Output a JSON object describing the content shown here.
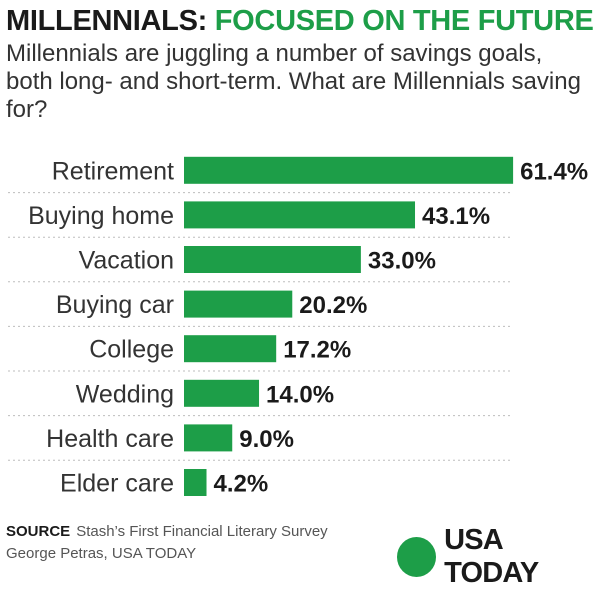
{
  "header": {
    "title_part1": "MILLENNIALS: ",
    "title_part2": "FOCUSED ON THE FUTURE",
    "subtitle": "Millennials are juggling a number of savings goals, both long- and short-term. What are Millennials saving for?"
  },
  "colors": {
    "accent": "#1d9e48",
    "text": "#222222",
    "divider": "#bdbdbd"
  },
  "chart_data": {
    "type": "bar",
    "orientation": "horizontal",
    "categories": [
      "Retirement",
      "Buying home",
      "Vacation",
      "Buying car",
      "College",
      "Wedding",
      "Health care",
      "Elder care"
    ],
    "values": [
      61.4,
      43.1,
      33.0,
      20.2,
      17.2,
      14.0,
      9.0,
      4.2
    ],
    "value_labels": [
      "61.4%",
      "43.1%",
      "33.0%",
      "20.2%",
      "17.2%",
      "14.0%",
      "9.0%",
      "4.2%"
    ],
    "unit": "%",
    "bar_color": "#1d9e48",
    "grid": false,
    "row_dividers": "dotted"
  },
  "footer": {
    "source_label": "SOURCE",
    "source_text": "Stash’s First Financial Literary Survey",
    "credit": "George Petras, USA TODAY",
    "logo_text": "USA TODAY"
  }
}
